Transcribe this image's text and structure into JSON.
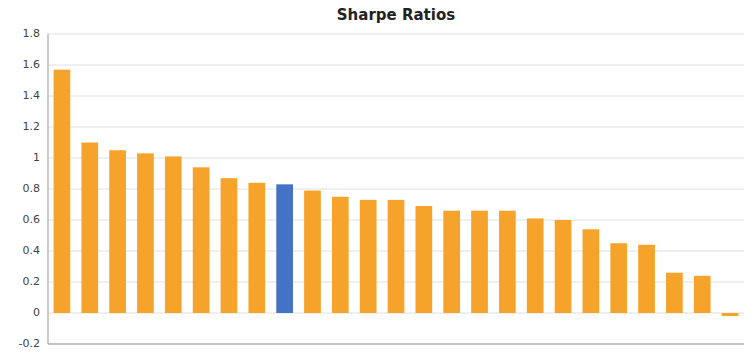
{
  "chart_data": {
    "type": "bar",
    "title": "Sharpe Ratios",
    "categories": [
      null,
      null,
      null,
      null,
      null,
      null,
      null,
      null,
      null,
      null,
      null,
      null,
      null,
      null,
      null,
      null,
      null,
      null,
      null,
      null,
      null,
      null,
      null,
      null,
      null
    ],
    "values": [
      1.57,
      1.1,
      1.05,
      1.03,
      1.01,
      0.94,
      0.87,
      0.84,
      0.83,
      0.79,
      0.75,
      0.73,
      0.73,
      0.69,
      0.66,
      0.66,
      0.66,
      0.61,
      0.6,
      0.54,
      0.45,
      0.44,
      0.26,
      0.24,
      -0.02
    ],
    "colors": [
      "#F5A32A",
      "#F5A32A",
      "#F5A32A",
      "#F5A32A",
      "#F5A32A",
      "#F5A32A",
      "#F5A32A",
      "#F5A32A",
      "#4472C4",
      "#F5A32A",
      "#F5A32A",
      "#F5A32A",
      "#F5A32A",
      "#F5A32A",
      "#F5A32A",
      "#F5A32A",
      "#F5A32A",
      "#F5A32A",
      "#F5A32A",
      "#F5A32A",
      "#F5A32A",
      "#F5A32A",
      "#F5A32A",
      "#F5A32A",
      "#F5A32A"
    ],
    "ylim": [
      -0.2,
      1.8
    ],
    "yticks": [
      -0.2,
      0,
      0.2,
      0.4,
      0.6,
      0.8,
      1,
      1.2,
      1.4,
      1.6,
      1.8
    ],
    "grid": true,
    "tick_labels": "y"
  }
}
